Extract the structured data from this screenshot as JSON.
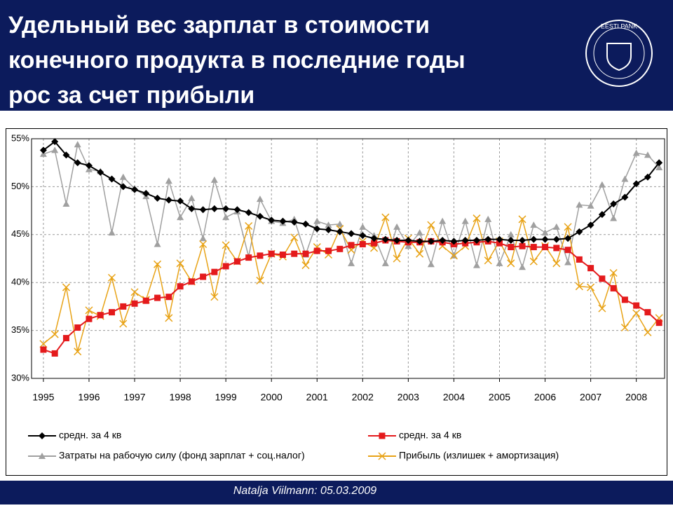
{
  "header": {
    "title_lines": [
      "Удельный вес зарплат в стоимости",
      "конечного продукта в последние годы",
      "рос за счет прибыли"
    ],
    "logo_text": "EESTI PANK"
  },
  "footer": {
    "text": "Natalja Viilmann: 05.03.2009"
  },
  "chart_data": {
    "type": "line",
    "x": [
      1995,
      1995.25,
      1995.5,
      1995.75,
      1996,
      1996.25,
      1996.5,
      1996.75,
      1997,
      1997.25,
      1997.5,
      1997.75,
      1998,
      1998.25,
      1998.5,
      1998.75,
      1999,
      1999.25,
      1999.5,
      1999.75,
      2000,
      2000.25,
      2000.5,
      2000.75,
      2001,
      2001.25,
      2001.5,
      2001.75,
      2002,
      2002.25,
      2002.5,
      2002.75,
      2003,
      2003.25,
      2003.5,
      2003.75,
      2004,
      2004.25,
      2004.5,
      2004.75,
      2005,
      2005.25,
      2005.5,
      2005.75,
      2006,
      2006.25,
      2006.5,
      2006.75,
      2007,
      2007.25,
      2007.5,
      2007.75,
      2008,
      2008.25,
      2008.5
    ],
    "xlim": [
      1994.74,
      2008.62
    ],
    "xticks": [
      1995,
      1996,
      1997,
      1998,
      1999,
      2000,
      2001,
      2002,
      2003,
      2004,
      2005,
      2006,
      2007,
      2008
    ],
    "ylim": [
      30,
      55
    ],
    "yticks": [
      {
        "value": 30,
        "label": "30%"
      },
      {
        "value": 35,
        "label": "35%"
      },
      {
        "value": 40,
        "label": "40%"
      },
      {
        "value": 45,
        "label": "45%"
      },
      {
        "value": 50,
        "label": "50%"
      },
      {
        "value": 55,
        "label": "55%"
      }
    ],
    "grid": true,
    "series": [
      {
        "name": "средн. за 4 кв",
        "color": "#000000",
        "marker": "diamond",
        "values": [
          53.8,
          54.7,
          53.3,
          52.5,
          52.2,
          51.5,
          50.8,
          50.0,
          49.7,
          49.3,
          48.8,
          48.6,
          48.5,
          47.7,
          47.6,
          47.7,
          47.7,
          47.6,
          47.3,
          46.9,
          46.5,
          46.4,
          46.3,
          46.1,
          45.6,
          45.5,
          45.3,
          45.1,
          44.9,
          44.6,
          44.5,
          44.4,
          44.4,
          44.3,
          44.3,
          44.4,
          44.3,
          44.4,
          44.4,
          44.5,
          44.5,
          44.4,
          44.4,
          44.5,
          44.5,
          44.5,
          44.6,
          45.3,
          46.0,
          47.1,
          48.2,
          48.9,
          50.3,
          51.0,
          52.5
        ]
      },
      {
        "name": "средн. за 4 кв",
        "color": "#e41a1c",
        "marker": "square",
        "values": [
          33.0,
          32.6,
          34.2,
          35.3,
          36.2,
          36.6,
          36.9,
          37.5,
          37.8,
          38.1,
          38.4,
          38.5,
          39.6,
          40.1,
          40.6,
          41.1,
          41.7,
          42.2,
          42.6,
          42.8,
          43.0,
          42.9,
          43.0,
          43.0,
          43.3,
          43.3,
          43.5,
          43.9,
          44.0,
          44.1,
          44.4,
          44.3,
          44.2,
          44.2,
          44.3,
          44.2,
          44.0,
          44.1,
          44.2,
          44.3,
          44.1,
          43.7,
          43.8,
          43.7,
          43.7,
          43.6,
          43.4,
          42.4,
          41.5,
          40.4,
          39.4,
          38.2,
          37.6,
          36.9,
          35.8
        ]
      },
      {
        "name": "Затраты на рабочую силу (фонд зарплат + соц.налог)",
        "color": "#a0a0a0",
        "marker": "triangle",
        "values": [
          53.4,
          53.8,
          48.2,
          54.4,
          51.8,
          51.6,
          45.2,
          51.0,
          49.8,
          49.0,
          44.0,
          50.6,
          46.8,
          48.8,
          44.6,
          50.7,
          46.8,
          47.4,
          42.7,
          48.7,
          46.4,
          46.2,
          46.6,
          42.9,
          46.4,
          46.0,
          46.1,
          42.0,
          45.8,
          44.9,
          42.0,
          45.8,
          43.8,
          45.2,
          41.9,
          46.4,
          42.8,
          46.4,
          41.8,
          46.6,
          42.0,
          45.0,
          41.6,
          46.0,
          45.2,
          45.8,
          42.1,
          48.1,
          48.0,
          50.2,
          46.7,
          50.8,
          53.5,
          53.3,
          52.0
        ]
      },
      {
        "name": "Прибыль (излишек + амортизация)",
        "color": "#e8a317",
        "marker": "x",
        "values": [
          33.6,
          34.6,
          39.5,
          32.8,
          37.1,
          36.5,
          40.5,
          35.7,
          39.0,
          38.2,
          41.9,
          36.3,
          42.0,
          40.1,
          44.0,
          38.5,
          43.9,
          42.2,
          45.9,
          40.2,
          43.0,
          42.7,
          44.7,
          41.8,
          43.7,
          42.9,
          45.6,
          43.4,
          44.3,
          43.6,
          46.8,
          42.5,
          44.6,
          43.0,
          46.0,
          43.8,
          42.8,
          43.8,
          46.7,
          42.3,
          44.3,
          42.0,
          46.6,
          42.2,
          43.8,
          42.0,
          45.8,
          39.6,
          39.5,
          37.3,
          41.0,
          35.3,
          36.8,
          34.8,
          36.3
        ]
      }
    ]
  }
}
